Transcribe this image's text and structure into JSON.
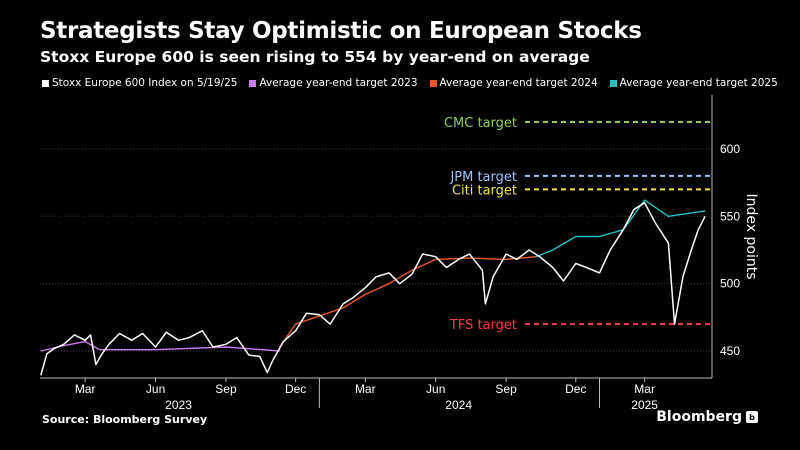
{
  "title": "Strategists Stay Optimistic on European Stocks",
  "subtitle": "Stoxx Europe 600 is seen rising to 554 by year-end on average",
  "source": "Source: Bloomberg Survey",
  "brand": "Bloomberg",
  "chart_data": {
    "type": "line",
    "ylabel": "Index points",
    "ylim": [
      430,
      640
    ],
    "yticks": [
      450,
      500,
      550,
      600
    ],
    "xlim": [
      "2023-01-01",
      "2025-05-28"
    ],
    "x_month_ticks": [
      {
        "date": "2023-03-01",
        "label": "Mar"
      },
      {
        "date": "2023-06-01",
        "label": "Jun"
      },
      {
        "date": "2023-09-01",
        "label": "Sep"
      },
      {
        "date": "2023-12-01",
        "label": "Dec"
      },
      {
        "date": "2024-03-01",
        "label": "Mar"
      },
      {
        "date": "2024-06-01",
        "label": "Jun"
      },
      {
        "date": "2024-09-01",
        "label": "Sep"
      },
      {
        "date": "2024-12-01",
        "label": "Dec"
      },
      {
        "date": "2025-03-01",
        "label": "Mar"
      }
    ],
    "x_year_ticks": [
      {
        "date": "2023-07-01",
        "label": "2023"
      },
      {
        "date": "2024-07-01",
        "label": "2024"
      },
      {
        "date": "2025-03-01",
        "label": "2025"
      }
    ],
    "grid": "horizontal",
    "legend": "top",
    "series": [
      {
        "name": "Stoxx Europe 600 Index on 5/19/25",
        "color": "#ffffff",
        "points": [
          [
            "2023-01-02",
            432
          ],
          [
            "2023-01-10",
            448
          ],
          [
            "2023-01-20",
            452
          ],
          [
            "2023-02-01",
            455
          ],
          [
            "2023-02-15",
            462
          ],
          [
            "2023-03-01",
            458
          ],
          [
            "2023-03-08",
            462
          ],
          [
            "2023-03-15",
            440
          ],
          [
            "2023-03-22",
            447
          ],
          [
            "2023-04-01",
            455
          ],
          [
            "2023-04-15",
            463
          ],
          [
            "2023-05-01",
            458
          ],
          [
            "2023-05-15",
            463
          ],
          [
            "2023-06-01",
            453
          ],
          [
            "2023-06-15",
            464
          ],
          [
            "2023-07-01",
            458
          ],
          [
            "2023-07-15",
            460
          ],
          [
            "2023-08-01",
            465
          ],
          [
            "2023-08-15",
            453
          ],
          [
            "2023-09-01",
            455
          ],
          [
            "2023-09-15",
            460
          ],
          [
            "2023-10-01",
            447
          ],
          [
            "2023-10-15",
            446
          ],
          [
            "2023-10-25",
            434
          ],
          [
            "2023-11-01",
            443
          ],
          [
            "2023-11-15",
            457
          ],
          [
            "2023-12-01",
            465
          ],
          [
            "2023-12-15",
            478
          ],
          [
            "2024-01-01",
            477
          ],
          [
            "2024-01-15",
            470
          ],
          [
            "2024-02-01",
            485
          ],
          [
            "2024-02-15",
            490
          ],
          [
            "2024-03-01",
            497
          ],
          [
            "2024-03-15",
            505
          ],
          [
            "2024-04-01",
            508
          ],
          [
            "2024-04-15",
            500
          ],
          [
            "2024-05-01",
            507
          ],
          [
            "2024-05-15",
            522
          ],
          [
            "2024-06-01",
            520
          ],
          [
            "2024-06-15",
            512
          ],
          [
            "2024-07-01",
            518
          ],
          [
            "2024-07-15",
            522
          ],
          [
            "2024-08-01",
            510
          ],
          [
            "2024-08-05",
            485
          ],
          [
            "2024-08-15",
            505
          ],
          [
            "2024-09-01",
            522
          ],
          [
            "2024-09-15",
            518
          ],
          [
            "2024-10-01",
            525
          ],
          [
            "2024-10-15",
            520
          ],
          [
            "2024-11-01",
            512
          ],
          [
            "2024-11-15",
            502
          ],
          [
            "2024-12-01",
            515
          ],
          [
            "2024-12-15",
            512
          ],
          [
            "2025-01-01",
            508
          ],
          [
            "2025-01-15",
            525
          ],
          [
            "2025-02-01",
            540
          ],
          [
            "2025-02-15",
            555
          ],
          [
            "2025-03-01",
            560
          ],
          [
            "2025-03-15",
            545
          ],
          [
            "2025-04-01",
            530
          ],
          [
            "2025-04-09",
            470
          ],
          [
            "2025-04-20",
            505
          ],
          [
            "2025-05-01",
            525
          ],
          [
            "2025-05-10",
            540
          ],
          [
            "2025-05-19",
            550
          ]
        ]
      },
      {
        "name": "Average year-end target 2023",
        "color": "#c97bf0",
        "points": [
          [
            "2023-01-02",
            450
          ],
          [
            "2023-02-01",
            454
          ],
          [
            "2023-03-01",
            457
          ],
          [
            "2023-03-20",
            451
          ],
          [
            "2023-06-01",
            451
          ],
          [
            "2023-09-01",
            453
          ],
          [
            "2023-11-10",
            450
          ]
        ]
      },
      {
        "name": "Average year-end target 2024",
        "color": "#f05a28",
        "points": [
          [
            "2023-11-10",
            453
          ],
          [
            "2023-12-01",
            470
          ],
          [
            "2024-01-01",
            476
          ],
          [
            "2024-02-01",
            482
          ],
          [
            "2024-03-01",
            492
          ],
          [
            "2024-04-01",
            500
          ],
          [
            "2024-05-01",
            510
          ],
          [
            "2024-06-01",
            518
          ],
          [
            "2024-07-15",
            519
          ],
          [
            "2024-09-01",
            518
          ],
          [
            "2024-10-10",
            520
          ]
        ]
      },
      {
        "name": "Average year-end target 2025",
        "color": "#22c3c8",
        "points": [
          [
            "2024-10-10",
            520
          ],
          [
            "2024-11-01",
            525
          ],
          [
            "2024-12-01",
            535
          ],
          [
            "2025-01-01",
            535
          ],
          [
            "2025-02-01",
            540
          ],
          [
            "2025-03-01",
            562
          ],
          [
            "2025-04-01",
            550
          ],
          [
            "2025-05-19",
            554
          ]
        ]
      }
    ],
    "targets": [
      {
        "label": "CMC target",
        "value": 620,
        "color": "#8ed05a"
      },
      {
        "label": "JPM target",
        "value": 580,
        "color": "#9cc4ff"
      },
      {
        "label": "Citi target",
        "value": 570,
        "color": "#f2e24a"
      },
      {
        "label": "TFS target",
        "value": 470,
        "color": "#ff3b4a"
      }
    ]
  }
}
